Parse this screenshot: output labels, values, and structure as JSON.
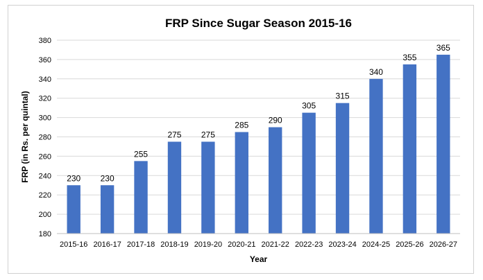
{
  "chart_data": {
    "type": "bar",
    "title": "FRP Since Sugar Season 2015-16",
    "xlabel": "Year",
    "ylabel": "FRP (in Rs. per quintal)",
    "ylim": [
      180,
      380
    ],
    "ytick_step": 20,
    "grid": true,
    "bar_color": "#4472C4",
    "categories": [
      "2015-16",
      "2016-17",
      "2017-18",
      "2018-19",
      "2019-20",
      "2020-21",
      "2021-22",
      "2022-23",
      "2023-24",
      "2024-25",
      "2025-26",
      "2026-27"
    ],
    "values": [
      230,
      230,
      255,
      275,
      275,
      285,
      290,
      305,
      315,
      340,
      355,
      365
    ]
  }
}
